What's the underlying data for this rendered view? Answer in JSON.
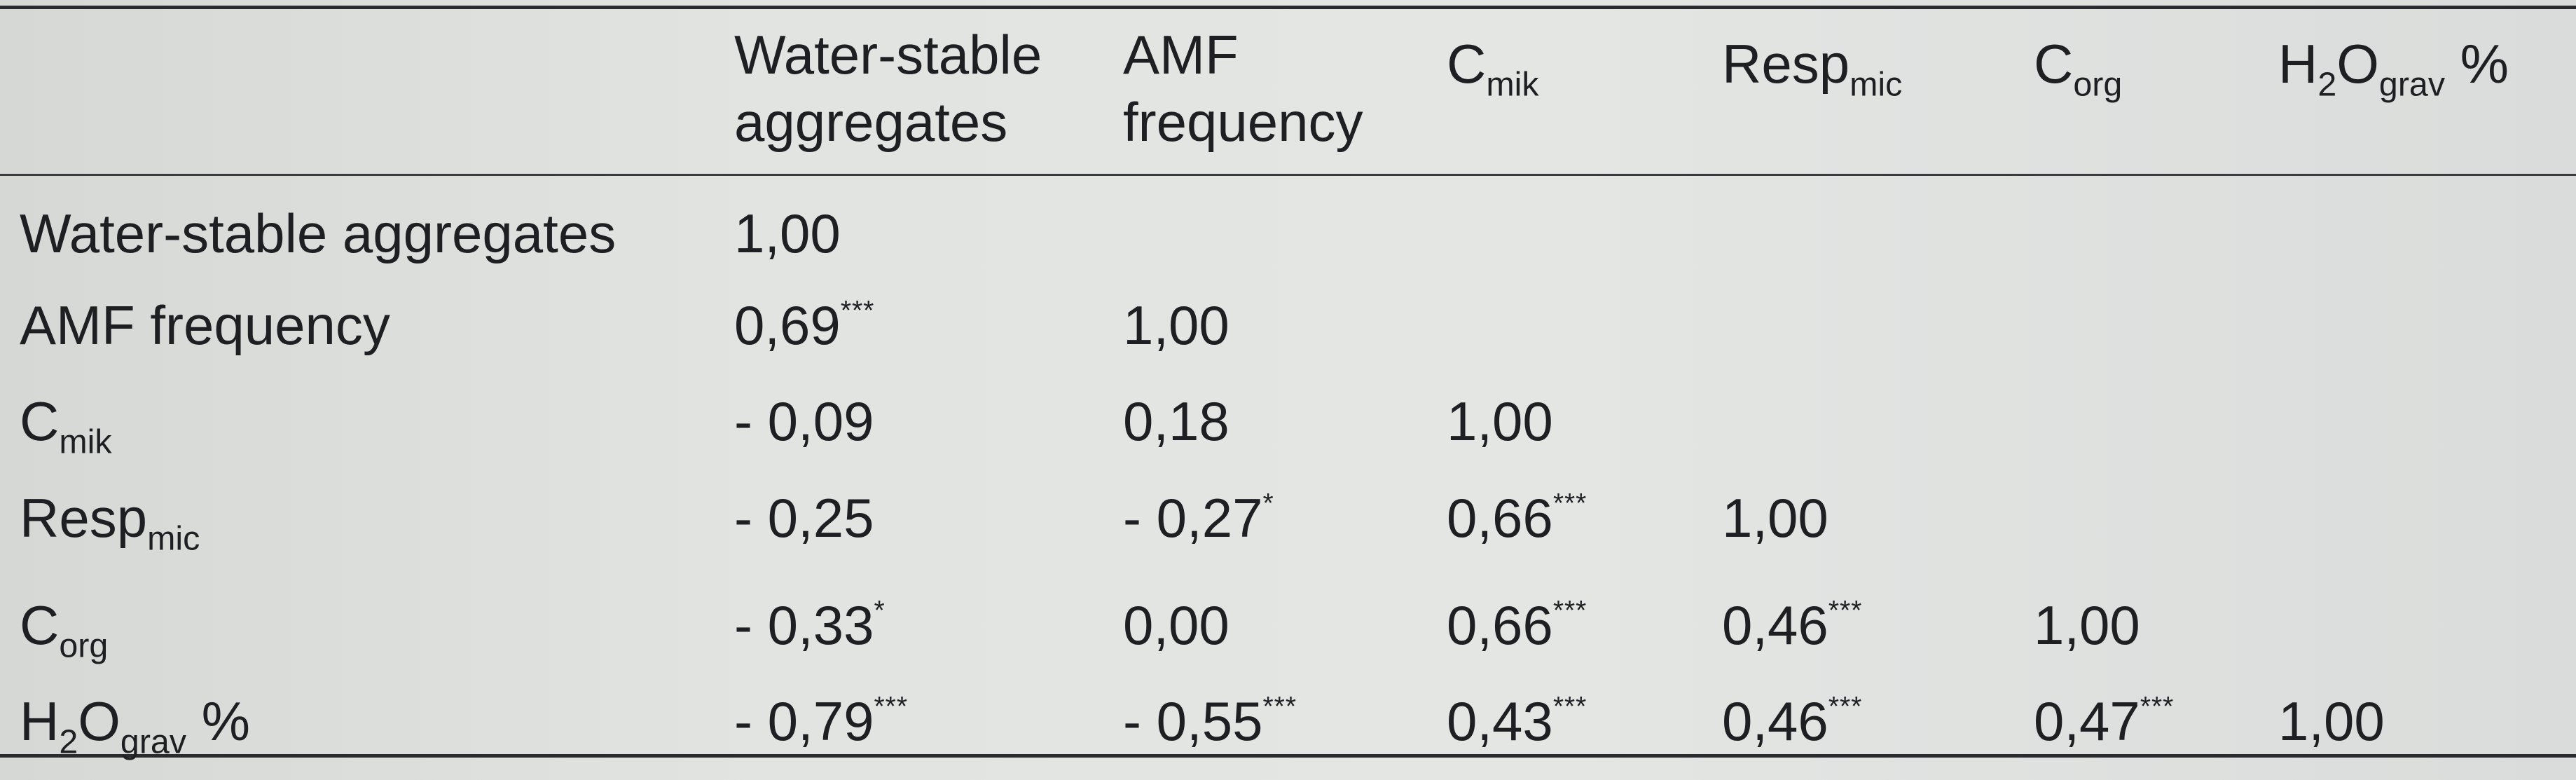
{
  "table": {
    "headers": [
      {
        "line1": "Water-stable",
        "line2": "aggregates"
      },
      {
        "line1": "AMF",
        "line2": "frequency"
      },
      {
        "base": "C",
        "sub": "mik"
      },
      {
        "base": "Resp",
        "sub": "mic"
      },
      {
        "base": "C",
        "sub": "org"
      },
      {
        "base": "H",
        "sub1": "2",
        "mid": "O",
        "sub2": "grav",
        "suffix": " %"
      }
    ],
    "rows": [
      {
        "label": {
          "text": "Water-stable aggregates"
        },
        "cells": [
          {
            "v": "1,00",
            "s": ""
          }
        ]
      },
      {
        "label": {
          "text": "AMF frequency"
        },
        "cells": [
          {
            "v": "0,69",
            "s": "***"
          },
          {
            "v": "1,00",
            "s": ""
          }
        ]
      },
      {
        "label": {
          "base": "C",
          "sub": "mik"
        },
        "cells": [
          {
            "v": "- 0,09",
            "s": ""
          },
          {
            "v": "0,18",
            "s": ""
          },
          {
            "v": "1,00",
            "s": ""
          }
        ]
      },
      {
        "label": {
          "base": "Resp",
          "sub": "mic"
        },
        "cells": [
          {
            "v": "- 0,25",
            "s": ""
          },
          {
            "v": "- 0,27",
            "s": "*"
          },
          {
            "v": "0,66",
            "s": "***"
          },
          {
            "v": "1,00",
            "s": ""
          }
        ]
      },
      {
        "label": {
          "base": "C",
          "sub": "org"
        },
        "cells": [
          {
            "v": "- 0,33",
            "s": "*"
          },
          {
            "v": "0,00",
            "s": ""
          },
          {
            "v": "0,66",
            "s": "***"
          },
          {
            "v": "0,46",
            "s": "***"
          },
          {
            "v": "1,00",
            "s": ""
          }
        ]
      },
      {
        "label": {
          "base": "H",
          "sub1": "2",
          "mid": "O",
          "sub2": "grav",
          "suffix": " %"
        },
        "cells": [
          {
            "v": "- 0,79",
            "s": "***"
          },
          {
            "v": "- 0,55",
            "s": "***"
          },
          {
            "v": "0,43",
            "s": "***"
          },
          {
            "v": "0,46",
            "s": "***"
          },
          {
            "v": "0,47",
            "s": "***"
          },
          {
            "v": "1,00",
            "s": ""
          }
        ]
      }
    ]
  }
}
